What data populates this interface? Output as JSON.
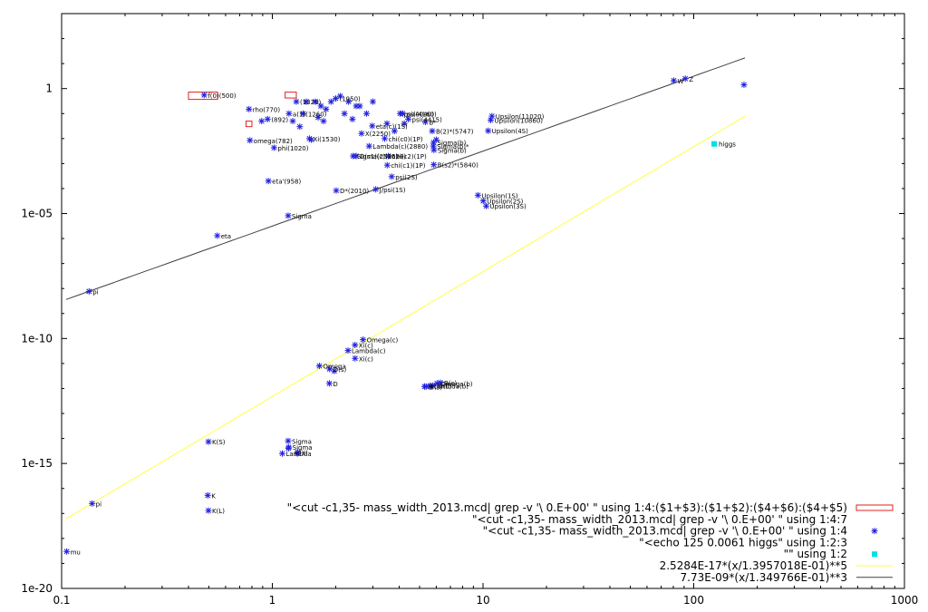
{
  "chart_data": {
    "type": "scatter",
    "title": "",
    "xlabel": "",
    "ylabel": "",
    "x_scale": "log",
    "y_scale": "log",
    "xlim": [
      0.1,
      1000
    ],
    "ylim": [
      1e-20,
      1000
    ],
    "grid": false,
    "legend_placement": "bottom-right",
    "colors": {
      "points": "#2020e0",
      "boxes": "#e02020",
      "higgs": "#00e0e0",
      "fit5": "#ffff40",
      "fit3": "#404040"
    },
    "x_ticks": [
      {
        "value": 0.1,
        "label": "0.1"
      },
      {
        "value": 1,
        "label": "1"
      },
      {
        "value": 10,
        "label": "10"
      },
      {
        "value": 100,
        "label": "100"
      },
      {
        "value": 1000,
        "label": "1000"
      }
    ],
    "y_ticks": [
      {
        "value": 1,
        "label": "1"
      },
      {
        "value": 1e-05,
        "label": "1e-05"
      },
      {
        "value": 1e-10,
        "label": "1e-10"
      },
      {
        "value": 1e-15,
        "label": "1e-15"
      },
      {
        "value": 1e-20,
        "label": "1e-20"
      }
    ],
    "legend": [
      {
        "label": "\"<cut -c1,35- mass_width_2013.mcd| grep -v '\\ 0.E+00' \" using 1:4:($1+$3):($1+$2):($4+$6):($4+$5)",
        "style": "box"
      },
      {
        "label": "\"<cut -c1,35- mass_width_2013.mcd| grep -v '\\ 0.E+00' \" using 1:4:7",
        "style": "none"
      },
      {
        "label": "\"<cut -c1,35- mass_width_2013.mcd| grep -v '\\ 0.E+00' \" using 1:4",
        "style": "star"
      },
      {
        "label": "\"<echo 125 0.0061 higgs\" using 1:2:3",
        "style": "none"
      },
      {
        "label": "\"\" using 1:2",
        "style": "square"
      },
      {
        "label": "2.5284E-17*(x/1.3957018E-01)**5",
        "style": "line5"
      },
      {
        "label": "7.73E-09*(x/1.349766E-01)**3",
        "style": "line3"
      }
    ],
    "fits": [
      {
        "name": "fit5",
        "coef": 2.5284e-17,
        "base": 0.13957018,
        "power": 5,
        "x_range": [
          0.105,
          175
        ]
      },
      {
        "name": "fit3",
        "coef": 7.73e-09,
        "base": 0.1349766,
        "power": 3,
        "x_range": [
          0.105,
          175
        ]
      }
    ],
    "boxes": [
      {
        "x": [
          0.4,
          0.55
        ],
        "y": [
          0.37,
          0.72
        ]
      },
      {
        "x": [
          1.15,
          1.3
        ],
        "y": [
          0.42,
          0.72
        ]
      },
      {
        "x": [
          0.75,
          0.8
        ],
        "y": [
          0.03,
          0.05
        ]
      }
    ],
    "higgs": {
      "x": 125,
      "y": 0.0061,
      "label": "higgs"
    },
    "points": [
      {
        "x": 0.1057,
        "y": 3e-19,
        "label": "mu"
      },
      {
        "x": 0.1396,
        "y": 2.5e-17,
        "label": "pi"
      },
      {
        "x": 0.135,
        "y": 7.7e-09,
        "label": "pi"
      },
      {
        "x": 0.4937,
        "y": 5.3e-17,
        "label": "K"
      },
      {
        "x": 0.4976,
        "y": 1.3e-17,
        "label": "K(L)"
      },
      {
        "x": 0.4976,
        "y": 7.4e-15,
        "label": "K(S)"
      },
      {
        "x": 0.5479,
        "y": 1.3e-06,
        "label": "eta"
      },
      {
        "x": 0.475,
        "y": 0.55,
        "label": "f(0)(500)"
      },
      {
        "x": 0.775,
        "y": 0.15,
        "label": "rho(770)"
      },
      {
        "x": 0.783,
        "y": 0.0085,
        "label": "omega(782)"
      },
      {
        "x": 0.958,
        "y": 0.0002,
        "label": "eta'(958)"
      },
      {
        "x": 1.019,
        "y": 0.0043,
        "label": "phi(1020)"
      },
      {
        "x": 0.89,
        "y": 0.05,
        "label": ""
      },
      {
        "x": 0.95,
        "y": 0.06,
        "label": "(892)"
      },
      {
        "x": 1.115,
        "y": 2.5e-15,
        "label": "Lambda"
      },
      {
        "x": 1.189,
        "y": 8.2e-06,
        "label": "Sigma"
      },
      {
        "x": 1.189,
        "y": 8e-15,
        "label": "Sigma"
      },
      {
        "x": 1.193,
        "y": 4e-15,
        "label": ""
      },
      {
        "x": 1.197,
        "y": 4.5e-15,
        "label": "Sigma"
      },
      {
        "x": 1.315,
        "y": 2.5e-15,
        "label": ""
      },
      {
        "x": 1.321,
        "y": 2.8e-15,
        "label": "Xi"
      },
      {
        "x": 1.672,
        "y": 8e-12,
        "label": "Omega"
      },
      {
        "x": 1.865,
        "y": 1.6e-12,
        "label": "D"
      },
      {
        "x": 1.87,
        "y": 6e-12,
        "label": "D(s)"
      },
      {
        "x": 1.968,
        "y": 5e-12,
        "label": ""
      },
      {
        "x": 2.01,
        "y": 8.3e-05,
        "label": "D*(2010)"
      },
      {
        "x": 2.286,
        "y": 3.3e-11,
        "label": "Lambda(c)"
      },
      {
        "x": 2.468,
        "y": 5.5e-11,
        "label": "Xi(c)"
      },
      {
        "x": 2.471,
        "y": 1.6e-11,
        "label": "Xi(c)"
      },
      {
        "x": 2.695,
        "y": 9e-11,
        "label": "Omega(c)"
      },
      {
        "x": 3.097,
        "y": 9.3e-05,
        "label": "J/psi(1S)"
      },
      {
        "x": 3.686,
        "y": 0.0003,
        "label": "psi(2S)"
      },
      {
        "x": 3.415,
        "y": 0.01,
        "label": "chi(c0)(1P)"
      },
      {
        "x": 3.511,
        "y": 0.00086,
        "label": "chi(c1)(1P)"
      },
      {
        "x": 3.556,
        "y": 0.002,
        "label": "chi(c2)(1P)"
      },
      {
        "x": 2.98,
        "y": 0.032,
        "label": "eta(c)(1S)"
      },
      {
        "x": 2.5,
        "y": 0.002,
        "label": "D(s1)(2536)+"
      },
      {
        "x": 2.42,
        "y": 0.002,
        "label": "Sigma(c)(2520)"
      },
      {
        "x": 2.88,
        "y": 0.005,
        "label": "Lambda(c)(2880)"
      },
      {
        "x": 2.65,
        "y": 0.016,
        "label": "X(2250)"
      },
      {
        "x": 5.279,
        "y": 1.2e-12,
        "label": "B"
      },
      {
        "x": 5.366,
        "y": 1.2e-12,
        "label": "B(s)"
      },
      {
        "x": 5.62,
        "y": 1.3e-12,
        "label": "Lambda(b)"
      },
      {
        "x": 5.79,
        "y": 1.3e-12,
        "label": "Xi(b)"
      },
      {
        "x": 6.048,
        "y": 1.6e-12,
        "label": "Omega(b)"
      },
      {
        "x": 6.275,
        "y": 1.7e-12,
        "label": "B(c)"
      },
      {
        "x": 5.325,
        "y": 0.046,
        "label": "B*"
      },
      {
        "x": 5.74,
        "y": 0.02,
        "label": "B(2)*(5747)"
      },
      {
        "x": 5.84,
        "y": 0.0009,
        "label": "B(s2)*(5840)"
      },
      {
        "x": 5.81,
        "y": 0.005,
        "label": "Sigma(b)*"
      },
      {
        "x": 5.83,
        "y": 0.007,
        "label": "Sigma(b)"
      },
      {
        "x": 5.85,
        "y": 0.0035,
        "label": "Sigma(b)"
      },
      {
        "x": 6.0,
        "y": 0.009,
        "label": ""
      },
      {
        "x": 9.46,
        "y": 5.4e-05,
        "label": "Upsilon(1S)"
      },
      {
        "x": 10.023,
        "y": 3.2e-05,
        "label": "Upsilon(2S)"
      },
      {
        "x": 10.355,
        "y": 2e-05,
        "label": "Upsilon(3S)"
      },
      {
        "x": 10.579,
        "y": 0.0205,
        "label": "Upsilon(4S)"
      },
      {
        "x": 10.876,
        "y": 0.055,
        "label": "Upsilon(10860)"
      },
      {
        "x": 11.02,
        "y": 0.079,
        "label": "Upsilon(11020)"
      },
      {
        "x": 4.04,
        "y": 0.1,
        "label": "psi(4040)"
      },
      {
        "x": 4.16,
        "y": 0.1,
        "label": "psi(4160)"
      },
      {
        "x": 4.42,
        "y": 0.06,
        "label": "psi(4415)"
      },
      {
        "x": 4.23,
        "y": 0.04,
        "label": ""
      },
      {
        "x": 1.2,
        "y": 0.1,
        "label": "a(1)(1260)"
      },
      {
        "x": 1.3,
        "y": 0.3,
        "label": "(1320)"
      },
      {
        "x": 1.4,
        "y": 0.1,
        "label": ""
      },
      {
        "x": 1.5,
        "y": 0.01,
        "label": "Xi(1530)"
      },
      {
        "x": 1.53,
        "y": 0.009,
        "label": ""
      },
      {
        "x": 1.6,
        "y": 0.3,
        "label": ""
      },
      {
        "x": 1.7,
        "y": 0.2,
        "label": ""
      },
      {
        "x": 1.8,
        "y": 0.15,
        "label": ""
      },
      {
        "x": 1.9,
        "y": 0.3,
        "label": ""
      },
      {
        "x": 2.0,
        "y": 0.4,
        "label": "(1950)"
      },
      {
        "x": 2.1,
        "y": 0.5,
        "label": ""
      },
      {
        "x": 2.3,
        "y": 0.3,
        "label": ""
      },
      {
        "x": 2.5,
        "y": 0.2,
        "label": ""
      },
      {
        "x": 1.65,
        "y": 0.07,
        "label": ""
      },
      {
        "x": 1.75,
        "y": 0.05,
        "label": ""
      },
      {
        "x": 1.45,
        "y": 0.3,
        "label": ""
      },
      {
        "x": 1.35,
        "y": 0.03,
        "label": ""
      },
      {
        "x": 1.25,
        "y": 0.05,
        "label": ""
      },
      {
        "x": 2.2,
        "y": 0.1,
        "label": ""
      },
      {
        "x": 2.6,
        "y": 0.2,
        "label": ""
      },
      {
        "x": 3.0,
        "y": 0.3,
        "label": ""
      },
      {
        "x": 2.8,
        "y": 0.1,
        "label": ""
      },
      {
        "x": 2.4,
        "y": 0.06,
        "label": ""
      },
      {
        "x": 3.5,
        "y": 0.04,
        "label": ""
      },
      {
        "x": 3.8,
        "y": 0.02,
        "label": ""
      },
      {
        "x": 80.4,
        "y": 2.085,
        "label": "W"
      },
      {
        "x": 91.19,
        "y": 2.495,
        "label": "Z"
      },
      {
        "x": 173.2,
        "y": 1.41,
        "label": ""
      }
    ]
  }
}
